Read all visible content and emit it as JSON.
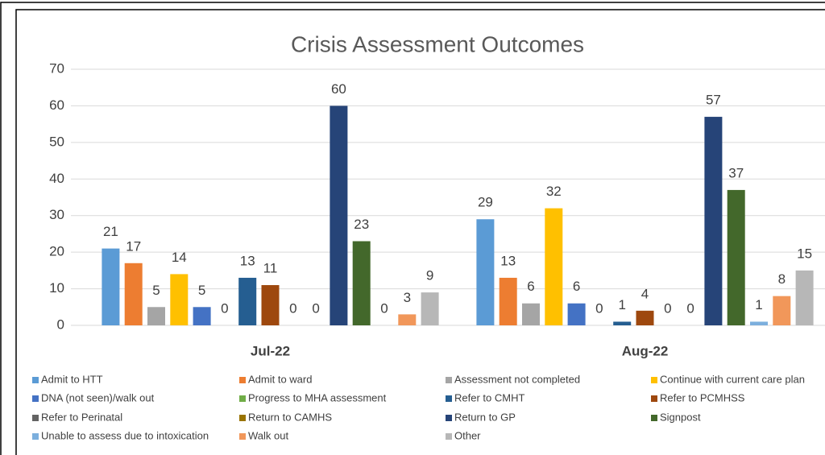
{
  "chart_data": {
    "type": "bar",
    "title": "Crisis Assessment Outcomes",
    "categories": [
      "Jul-22",
      "Aug-22"
    ],
    "series": [
      {
        "name": "Admit to HTT",
        "color": "#5b9bd5",
        "values": [
          21,
          29
        ]
      },
      {
        "name": "Admit to ward",
        "color": "#ed7d31",
        "values": [
          17,
          13
        ]
      },
      {
        "name": "Assessment not completed",
        "color": "#a5a5a5",
        "values": [
          5,
          6
        ]
      },
      {
        "name": "Continue with current care plan",
        "color": "#ffc000",
        "values": [
          14,
          32
        ]
      },
      {
        "name": "DNA (not seen)/walk out",
        "color": "#4472c4",
        "values": [
          5,
          6
        ]
      },
      {
        "name": "Progress to MHA assessment",
        "color": "#70ad47",
        "values": [
          0,
          0
        ]
      },
      {
        "name": "Refer to CMHT",
        "color": "#255e91",
        "values": [
          13,
          1
        ]
      },
      {
        "name": "Refer to PCMHSS",
        "color": "#9e480e",
        "values": [
          11,
          4
        ]
      },
      {
        "name": "Refer to Perinatal",
        "color": "#636363",
        "values": [
          0,
          0
        ]
      },
      {
        "name": "Return to CAMHS",
        "color": "#997300",
        "values": [
          0,
          0
        ]
      },
      {
        "name": "Return to GP",
        "color": "#264478",
        "values": [
          60,
          57
        ]
      },
      {
        "name": "Signpost",
        "color": "#43682b",
        "values": [
          23,
          37
        ]
      },
      {
        "name": "Unable to assess due to intoxication",
        "color": "#7cafdd",
        "values": [
          0,
          1
        ]
      },
      {
        "name": "Walk out",
        "color": "#f1975a",
        "values": [
          3,
          8
        ]
      },
      {
        "name": "Other",
        "color": "#b7b7b7",
        "values": [
          9,
          15
        ]
      }
    ],
    "ylim": [
      0,
      70
    ],
    "yticks": [
      0,
      10,
      20,
      30,
      40,
      50,
      60,
      70
    ],
    "grid": true,
    "legend": "bottom"
  }
}
